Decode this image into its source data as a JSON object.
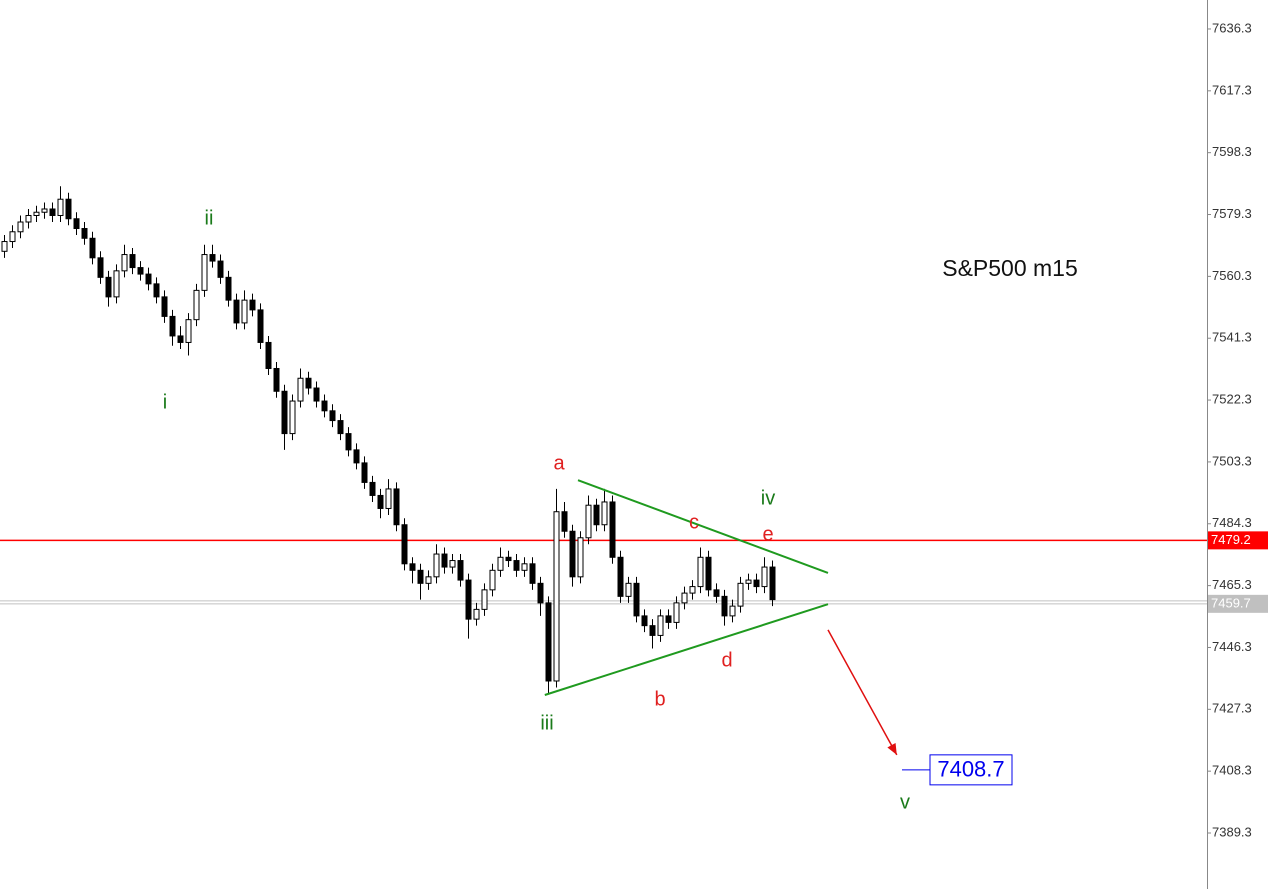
{
  "chart_data": {
    "type": "candlestick",
    "title": "S&P500 m15",
    "ylim": [
      7372.1,
      7645.2
    ],
    "yticks": [
      7636.3,
      7617.3,
      7598.3,
      7579.3,
      7560.3,
      7541.3,
      7522.3,
      7503.3,
      7484.3,
      7465.3,
      7446.3,
      7427.3,
      7408.3,
      7389.3
    ],
    "up_color": "#ffffff",
    "down_color": "#000000",
    "candles": [
      [
        7568,
        7573,
        7566,
        7571
      ],
      [
        7571,
        7576,
        7569,
        7574
      ],
      [
        7574,
        7579,
        7572,
        7577
      ],
      [
        7577,
        7581,
        7575,
        7579
      ],
      [
        7579,
        7582,
        7577,
        7580
      ],
      [
        7580,
        7583,
        7578,
        7581
      ],
      [
        7581,
        7583,
        7577,
        7579
      ],
      [
        7579,
        7588,
        7577,
        7584
      ],
      [
        7584,
        7586,
        7576,
        7578
      ],
      [
        7578,
        7580,
        7573,
        7575
      ],
      [
        7575,
        7577,
        7570,
        7572
      ],
      [
        7572,
        7574,
        7564,
        7566
      ],
      [
        7566,
        7568,
        7558,
        7560
      ],
      [
        7560,
        7562,
        7551,
        7554
      ],
      [
        7554,
        7564,
        7552,
        7562
      ],
      [
        7562,
        7570,
        7560,
        7567
      ],
      [
        7567,
        7569,
        7561,
        7563
      ],
      [
        7563,
        7565,
        7559,
        7561
      ],
      [
        7561,
        7563,
        7556,
        7558
      ],
      [
        7558,
        7560,
        7552,
        7554
      ],
      [
        7554,
        7556,
        7546,
        7548
      ],
      [
        7548,
        7550,
        7539,
        7542
      ],
      [
        7542,
        7545,
        7538,
        7540
      ],
      [
        7540,
        7549,
        7536,
        7547
      ],
      [
        7547,
        7558,
        7545,
        7556
      ],
      [
        7556,
        7570,
        7554,
        7567
      ],
      [
        7567,
        7570,
        7563,
        7565
      ],
      [
        7565,
        7567,
        7558,
        7560
      ],
      [
        7560,
        7562,
        7551,
        7553
      ],
      [
        7553,
        7555,
        7544,
        7546
      ],
      [
        7546,
        7556,
        7544,
        7553
      ],
      [
        7553,
        7555,
        7548,
        7550
      ],
      [
        7550,
        7552,
        7538,
        7540
      ],
      [
        7540,
        7542,
        7530,
        7532
      ],
      [
        7532,
        7534,
        7523,
        7525
      ],
      [
        7525,
        7527,
        7507,
        7512
      ],
      [
        7512,
        7524,
        7510,
        7522
      ],
      [
        7522,
        7532,
        7520,
        7529
      ],
      [
        7529,
        7531,
        7524,
        7526
      ],
      [
        7526,
        7528,
        7520,
        7522
      ],
      [
        7522,
        7524,
        7517,
        7519
      ],
      [
        7519,
        7521,
        7514,
        7516
      ],
      [
        7516,
        7518,
        7510,
        7512
      ],
      [
        7512,
        7514,
        7505,
        7507
      ],
      [
        7507,
        7509,
        7501,
        7503
      ],
      [
        7503,
        7505,
        7495,
        7497
      ],
      [
        7497,
        7499,
        7491,
        7493
      ],
      [
        7493,
        7495,
        7486,
        7489
      ],
      [
        7489,
        7498,
        7487,
        7495
      ],
      [
        7495,
        7497,
        7482,
        7484
      ],
      [
        7484,
        7486,
        7470,
        7472
      ],
      [
        7472,
        7474,
        7466,
        7470
      ],
      [
        7470,
        7472,
        7461,
        7466
      ],
      [
        7466,
        7470,
        7464,
        7468
      ],
      [
        7468,
        7478,
        7466,
        7475
      ],
      [
        7475,
        7477,
        7469,
        7471
      ],
      [
        7471,
        7475,
        7469,
        7473
      ],
      [
        7473,
        7475,
        7465,
        7467
      ],
      [
        7467,
        7469,
        7449,
        7455
      ],
      [
        7455,
        7460,
        7453,
        7458
      ],
      [
        7458,
        7466,
        7456,
        7464
      ],
      [
        7464,
        7472,
        7462,
        7470
      ],
      [
        7470,
        7477,
        7468,
        7474
      ],
      [
        7474,
        7476,
        7471,
        7473
      ],
      [
        7473,
        7475,
        7468,
        7470
      ],
      [
        7470,
        7474,
        7468,
        7472
      ],
      [
        7472,
        7474,
        7464,
        7466
      ],
      [
        7466,
        7468,
        7456,
        7460
      ],
      [
        7460,
        7462,
        7432,
        7436
      ],
      [
        7436,
        7495,
        7434,
        7488
      ],
      [
        7488,
        7491,
        7480,
        7482
      ],
      [
        7482,
        7484,
        7465,
        7468
      ],
      [
        7468,
        7482,
        7466,
        7480
      ],
      [
        7480,
        7493,
        7478,
        7490
      ],
      [
        7490,
        7492,
        7482,
        7484
      ],
      [
        7484,
        7495,
        7482,
        7491
      ],
      [
        7491,
        7493,
        7472,
        7474
      ],
      [
        7474,
        7476,
        7460,
        7462
      ],
      [
        7462,
        7468,
        7460,
        7466
      ],
      [
        7466,
        7468,
        7454,
        7456
      ],
      [
        7456,
        7458,
        7451,
        7453
      ],
      [
        7453,
        7455,
        7446,
        7450
      ],
      [
        7450,
        7458,
        7448,
        7456
      ],
      [
        7456,
        7458,
        7452,
        7454
      ],
      [
        7454,
        7462,
        7452,
        7460
      ],
      [
        7460,
        7465,
        7458,
        7463
      ],
      [
        7463,
        7467,
        7461,
        7465
      ],
      [
        7465,
        7477,
        7463,
        7474
      ],
      [
        7474,
        7476,
        7462,
        7464
      ],
      [
        7464,
        7466,
        7460,
        7462
      ],
      [
        7462,
        7464,
        7453,
        7456
      ],
      [
        7456,
        7461,
        7454,
        7459
      ],
      [
        7459,
        7468,
        7457,
        7466
      ],
      [
        7466,
        7469,
        7464,
        7467
      ],
      [
        7467,
        7469,
        7463,
        7465
      ],
      [
        7465,
        7474,
        7463,
        7471
      ],
      [
        7471,
        7473,
        7459,
        7461
      ]
    ],
    "price_lines": [
      {
        "value": 7479.2,
        "color": "#ff0000"
      },
      {
        "value": 7459.7,
        "color": "#c0c0c0"
      }
    ],
    "trendlines": [
      {
        "color": "#1f9a1f",
        "start": [
          71.75,
          7497.7
        ],
        "end": [
          103,
          7469.2
        ]
      },
      {
        "color": "#1f9a1f",
        "start": [
          67.6,
          7431.7
        ],
        "end": [
          103,
          7459.6
        ]
      }
    ],
    "arrow": {
      "color": "#e01010",
      "start": [
        103,
        7451.7
      ],
      "end": [
        111.6,
        7413.3
      ]
    },
    "target": {
      "value": 7408.7,
      "color": "#0000ee"
    },
    "wave_labels": [
      {
        "text": "i",
        "color": "#1a7a1a"
      },
      {
        "text": "ii",
        "color": "#1a7a1a"
      },
      {
        "text": "iii",
        "color": "#1a7a1a"
      },
      {
        "text": "iv",
        "color": "#1a7a1a"
      },
      {
        "text": "v",
        "color": "#1a7a1a"
      },
      {
        "text": "a",
        "color": "#e02020"
      },
      {
        "text": "b",
        "color": "#e02020"
      },
      {
        "text": "c",
        "color": "#e02020"
      },
      {
        "text": "d",
        "color": "#e02020"
      },
      {
        "text": "e",
        "color": "#e02020"
      }
    ]
  }
}
